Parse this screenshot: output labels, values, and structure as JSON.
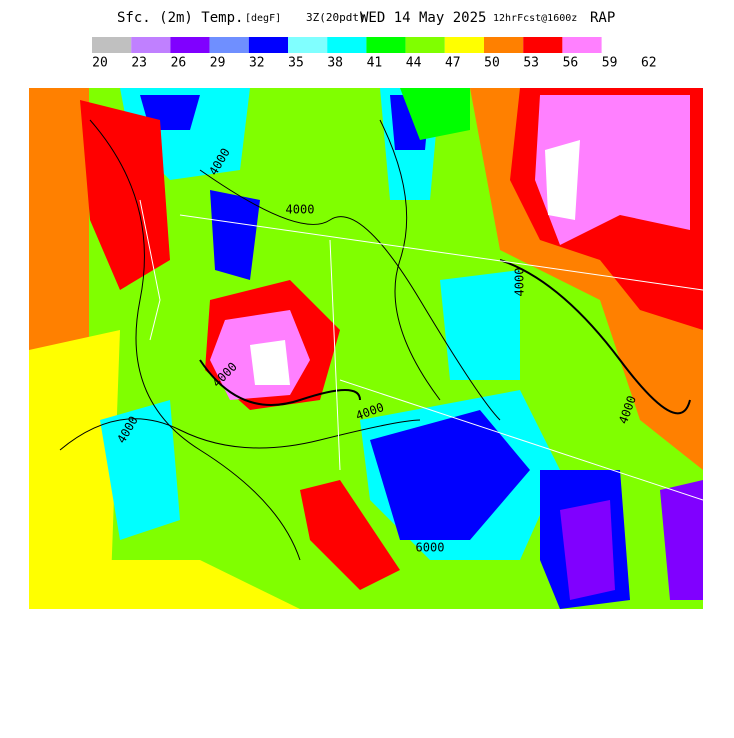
{
  "header": {
    "parts": [
      "Sfc. (2m) Temp.",
      "[degF]",
      "3Z(20pdt)",
      "WED 14 May 2025",
      "12hrFcst@1600z",
      "RAP"
    ]
  },
  "legend": {
    "colors": [
      "#c0c0c0",
      "#c080ff",
      "#8000ff",
      "#6f8fff",
      "#0000ff",
      "#80ffff",
      "#00ffff",
      "#00ff00",
      "#80ff00",
      "#ffff00",
      "#ff8000",
      "#ff0000",
      "#ff80ff"
    ],
    "labels": [
      20,
      23,
      26,
      29,
      32,
      35,
      38,
      41,
      44,
      47,
      50,
      53,
      56,
      59,
      62
    ]
  },
  "map": {
    "contour_labels": [
      "4000",
      "4000",
      "4000",
      "4000",
      "4000",
      "4000",
      "4000",
      "6000"
    ]
  }
}
